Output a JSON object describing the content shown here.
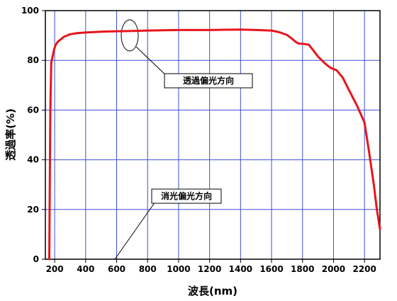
{
  "chart_data": {
    "type": "line",
    "title": "",
    "xlabel": "波長(nm)",
    "ylabel": "透過率(%)",
    "xlim": [
      140,
      2300
    ],
    "ylim": [
      0,
      100
    ],
    "xticks": [
      200,
      400,
      600,
      800,
      1000,
      1200,
      1400,
      1600,
      1800,
      2000,
      2200
    ],
    "yticks": [
      0,
      20,
      40,
      60,
      80,
      100
    ],
    "grid": true,
    "series": [
      {
        "color": "#e8141c",
        "x": [
          165,
          168,
          172,
          178,
          185,
          195,
          205,
          220,
          240,
          260,
          280,
          300,
          350,
          400,
          500,
          600,
          700,
          800,
          900,
          1000,
          1100,
          1200,
          1300,
          1400,
          1500,
          1600,
          1650,
          1700,
          1730,
          1760,
          1780,
          1800,
          1840,
          1870,
          1900,
          1950,
          1980,
          2020,
          2060,
          2100,
          2150,
          2200,
          2230,
          2260,
          2280,
          2300
        ],
        "y": [
          0,
          25,
          60,
          79,
          81,
          84,
          86,
          87.5,
          88.5,
          89.5,
          90,
          90.5,
          91,
          91.2,
          91.5,
          91.7,
          91.8,
          92,
          92.1,
          92.2,
          92.2,
          92.2,
          92.3,
          92.4,
          92.2,
          92,
          91.3,
          90.2,
          88.8,
          87.2,
          86.7,
          86.7,
          86.3,
          84,
          81.5,
          78.5,
          77,
          76,
          73,
          68,
          62,
          55,
          43,
          30,
          20,
          12
        ]
      }
    ],
    "annotations": [
      {
        "text": "透過偏光方向"
      },
      {
        "text": "消光偏光方向"
      }
    ]
  }
}
